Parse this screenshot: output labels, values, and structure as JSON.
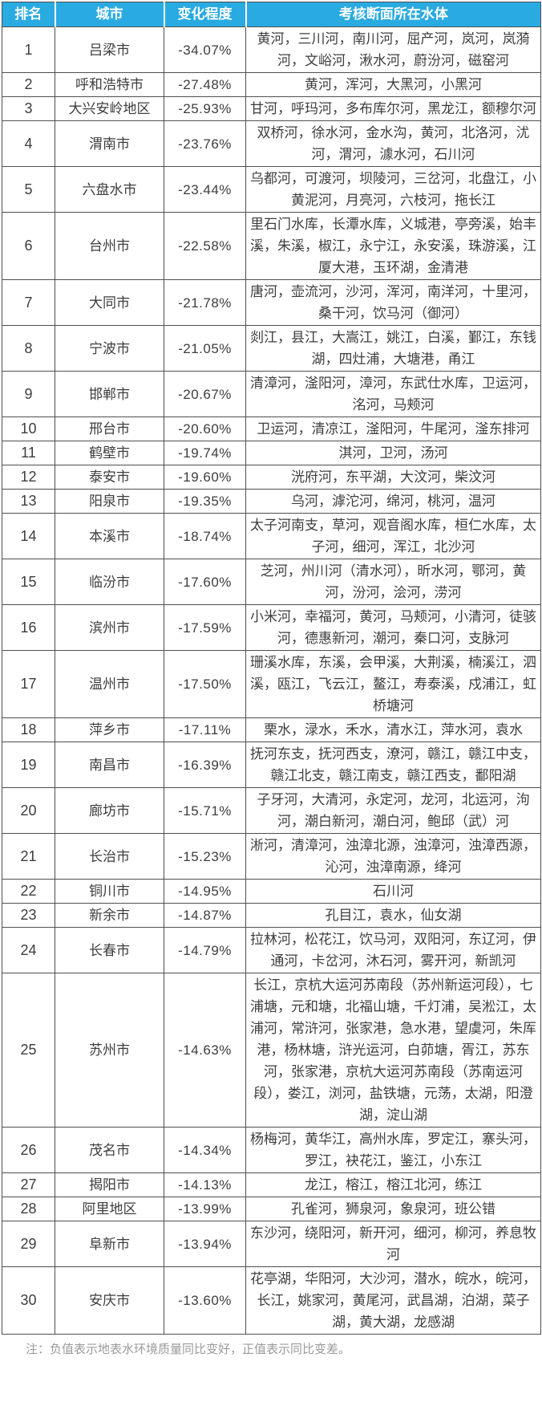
{
  "chart_data": {
    "type": "table",
    "columns": [
      "排名",
      "城市",
      "变化程度",
      "考核断面所在水体"
    ],
    "rows": [
      {
        "rank": "1",
        "city": "吕梁市",
        "change": "-34.07%",
        "waters": "黄河，三川河，南川河，屈产河，岚河，岚漪河，文峪河，湫水河，蔚汾河，磁窑河"
      },
      {
        "rank": "2",
        "city": "呼和浩特市",
        "change": "-27.48%",
        "waters": "黄河，浑河，大黑河，小黑河"
      },
      {
        "rank": "3",
        "city": "大兴安岭地区",
        "change": "-25.93%",
        "waters": "甘河，呼玛河，多布库尔河，黑龙江，额穆尔河"
      },
      {
        "rank": "4",
        "city": "渭南市",
        "change": "-23.76%",
        "waters": "双桥河，徐水河，金水沟，黄河，北洛河，沋河，渭河，澽水河，石川河"
      },
      {
        "rank": "5",
        "city": "六盘水市",
        "change": "-23.44%",
        "waters": "乌都河，可渡河，坝陵河，三岔河，北盘江，小黄泥河，月亮河，六枝河，拖长江"
      },
      {
        "rank": "6",
        "city": "台州市",
        "change": "-22.58%",
        "waters": "里石门水库，长潭水库，义城港，亭旁溪，始丰溪，朱溪，椒江，永宁江，永安溪，珠游溪，江厦大港，玉环湖，金清港"
      },
      {
        "rank": "7",
        "city": "大同市",
        "change": "-21.78%",
        "waters": "唐河，壶流河，沙河，浑河，南洋河，十里河，桑干河，饮马河（御河）"
      },
      {
        "rank": "8",
        "city": "宁波市",
        "change": "-21.05%",
        "waters": "剡江，县江，大嵩江，姚江，白溪，鄞江，东钱湖，四灶浦，大塘港，甬江"
      },
      {
        "rank": "9",
        "city": "邯郸市",
        "change": "-20.67%",
        "waters": "清漳河，滏阳河，漳河，东武仕水库，卫运河，洺河，马颊河"
      },
      {
        "rank": "10",
        "city": "邢台市",
        "change": "-20.60%",
        "waters": "卫运河，清凉江，滏阳河，牛尾河，滏东排河"
      },
      {
        "rank": "11",
        "city": "鹤壁市",
        "change": "-19.74%",
        "waters": "淇河，卫河，汤河"
      },
      {
        "rank": "12",
        "city": "泰安市",
        "change": "-19.60%",
        "waters": "洸府河，东平湖，大汶河，柴汶河"
      },
      {
        "rank": "13",
        "city": "阳泉市",
        "change": "-19.35%",
        "waters": "乌河，滹沱河，绵河，桃河，温河"
      },
      {
        "rank": "14",
        "city": "本溪市",
        "change": "-18.74%",
        "waters": "太子河南支，草河，观音阁水库，桓仁水库，太子河，细河，浑江，北沙河"
      },
      {
        "rank": "15",
        "city": "临汾市",
        "change": "-17.60%",
        "waters": "芝河，州川河（清水河），昕水河，鄂河，黄河，汾河，浍河，涝河"
      },
      {
        "rank": "16",
        "city": "滨州市",
        "change": "-17.59%",
        "waters": "小米河，幸福河，黄河，马颊河，小清河，徒骇河，德惠新河，潮河，秦口河，支脉河"
      },
      {
        "rank": "17",
        "city": "温州市",
        "change": "-17.50%",
        "waters": "珊溪水库，东溪，会甲溪，大荆溪，楠溪江，泗溪，瓯江，飞云江，鳌江，寿泰溪，戍浦江，虹桥塘河"
      },
      {
        "rank": "18",
        "city": "萍乡市",
        "change": "-17.11%",
        "waters": "栗水，渌水，禾水，清水江，萍水河，袁水"
      },
      {
        "rank": "19",
        "city": "南昌市",
        "change": "-16.39%",
        "waters": "抚河东支，抚河西支，潦河，赣江，赣江中支，赣江北支，赣江南支，赣江西支，鄱阳湖"
      },
      {
        "rank": "20",
        "city": "廊坊市",
        "change": "-15.71%",
        "waters": "子牙河，大清河，永定河，龙河，北运河，泃河，潮白新河，潮白河，鲍邱（武）河"
      },
      {
        "rank": "21",
        "city": "长治市",
        "change": "-15.23%",
        "waters": "淅河，清漳河，浊漳北源，浊漳河，浊漳西源，沁河，浊漳南源，绛河"
      },
      {
        "rank": "22",
        "city": "铜川市",
        "change": "-14.95%",
        "waters": "石川河"
      },
      {
        "rank": "23",
        "city": "新余市",
        "change": "-14.87%",
        "waters": "孔目江，袁水，仙女湖"
      },
      {
        "rank": "24",
        "city": "长春市",
        "change": "-14.79%",
        "waters": "拉林河，松花江，饮马河，双阳河，东辽河，伊通河，卡岔河，沐石河，雾开河，新凯河"
      },
      {
        "rank": "25",
        "city": "苏州市",
        "change": "-14.63%",
        "waters": "长江，京杭大运河苏南段（苏州新运河段），七浦塘，元和塘，北福山塘，千灯浦，吴淞江，太浦河，常浒河，张家港，急水港，望虞河，朱厍港，杨林塘，浒光运河，白茆塘，胥江，苏东河，张家港，京杭大运河苏南段（苏南运河段），娄江，浏河，盐铁塘，元荡，太湖，阳澄湖，淀山湖"
      },
      {
        "rank": "26",
        "city": "茂名市",
        "change": "-14.34%",
        "waters": "杨梅河，黄华江，高州水库，罗定江，寨头河，罗江，袂花江，鉴江，小东江"
      },
      {
        "rank": "27",
        "city": "揭阳市",
        "change": "-14.13%",
        "waters": "龙江，榕江，榕江北河，练江"
      },
      {
        "rank": "28",
        "city": "阿里地区",
        "change": "-13.99%",
        "waters": "孔雀河，狮泉河，象泉河，班公错"
      },
      {
        "rank": "29",
        "city": "阜新市",
        "change": "-13.94%",
        "waters": "东沙河，绕阳河，新开河，细河，柳河，养息牧河"
      },
      {
        "rank": "30",
        "city": "安庆市",
        "change": "-13.60%",
        "waters": "花亭湖，华阳河，大沙河，潜水，皖水，皖河，长江，姚家河，黄尾河，武昌湖，泊湖，菜子湖，黄大湖，龙感湖"
      }
    ],
    "note": "注：负值表示地表水环境质量同比变好，正值表示同比变差。",
    "layout": {
      "legend": "none",
      "grid": "full-borders"
    }
  },
  "colors": {
    "header_bg": "#29abe2",
    "header_text": "#ffffff",
    "border": "#4f4f4f",
    "body_text": "#3d3d3d",
    "note_text": "#9a9a9a"
  }
}
